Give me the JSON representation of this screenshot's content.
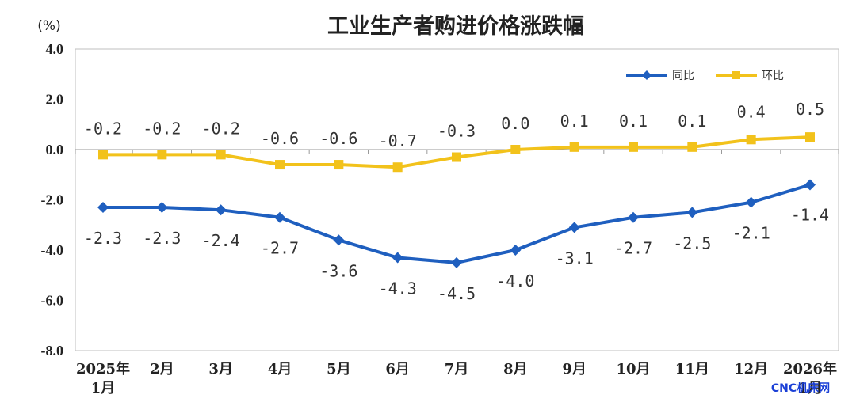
{
  "chart_data": {
    "type": "line",
    "title": "工业生产者购进价格涨跌幅",
    "ylabel": "(%)",
    "ylim": [
      -8.0,
      4.0
    ],
    "yticks": [
      "4.0",
      "2.0",
      "0.0",
      "-2.0",
      "-4.0",
      "-6.0",
      "-8.0"
    ],
    "ytick_values": [
      4,
      2,
      0,
      -2,
      -4,
      -6,
      -8
    ],
    "categories": [
      [
        "2025年",
        "1月"
      ],
      [
        "2月"
      ],
      [
        "3月"
      ],
      [
        "4月"
      ],
      [
        "5月"
      ],
      [
        "6月"
      ],
      [
        "7月"
      ],
      [
        "8月"
      ],
      [
        "9月"
      ],
      [
        "10月"
      ],
      [
        "11月"
      ],
      [
        "12月"
      ],
      [
        "2026年",
        "1月"
      ]
    ],
    "series": [
      {
        "name": "同比",
        "color": "#1f5fbf",
        "marker": "diamond",
        "values": [
          -2.3,
          -2.3,
          -2.4,
          -2.7,
          -3.6,
          -4.3,
          -4.5,
          -4.0,
          -3.1,
          -2.7,
          -2.5,
          -2.1,
          -1.4
        ],
        "labels": [
          "-2.3",
          "-2.3",
          "-2.4",
          "-2.7",
          "-3.6",
          "-4.3",
          "-4.5",
          "-4.0",
          "-3.1",
          "-2.7",
          "-2.5",
          "-2.1",
          "-1.4"
        ]
      },
      {
        "name": "环比",
        "color": "#f2c21b",
        "marker": "square",
        "values": [
          -0.2,
          -0.2,
          -0.2,
          -0.6,
          -0.6,
          -0.7,
          -0.3,
          0.0,
          0.1,
          0.1,
          0.1,
          0.4,
          0.5
        ],
        "labels": [
          "-0.2",
          "-0.2",
          "-0.2",
          "-0.6",
          "-0.6",
          "-0.7",
          "-0.3",
          "0.0",
          "0.1",
          "0.1",
          "0.1",
          "0.4",
          "0.5"
        ]
      }
    ],
    "legend_position": "top-right",
    "grid": false
  },
  "watermark": "CNC机床网"
}
